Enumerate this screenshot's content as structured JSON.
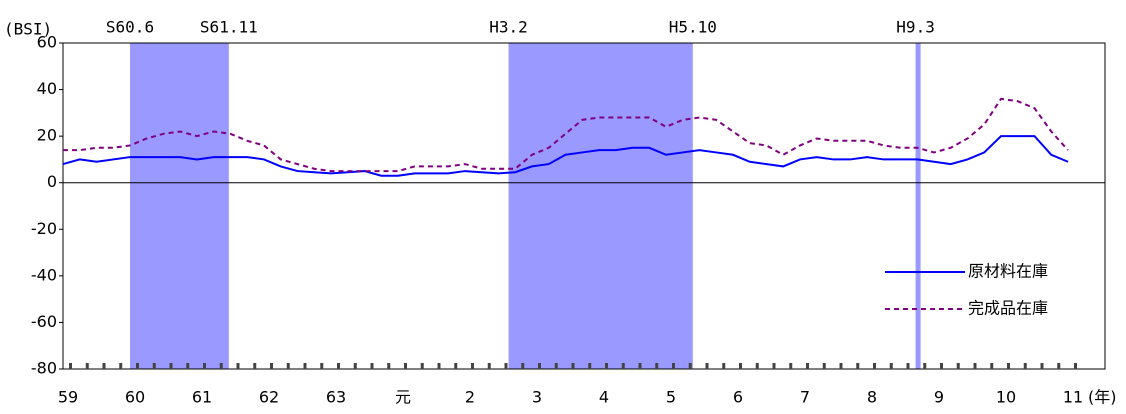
{
  "chart_data": {
    "type": "line",
    "ylabel": "(BSI)",
    "xlabel": "(年)",
    "categories": [
      "59",
      null,
      null,
      null,
      "60",
      null,
      null,
      null,
      "61",
      null,
      null,
      null,
      "62",
      null,
      null,
      null,
      "63",
      null,
      null,
      null,
      "元",
      null,
      null,
      null,
      "2",
      null,
      null,
      null,
      "3",
      null,
      null,
      null,
      "4",
      null,
      null,
      null,
      "5",
      null,
      null,
      null,
      "6",
      null,
      null,
      null,
      "7",
      null,
      null,
      null,
      "8",
      null,
      null,
      null,
      "9",
      null,
      null,
      null,
      "10",
      null,
      null,
      null,
      "11"
    ],
    "series": [
      {
        "name": "原材料在庫",
        "color": "#0000ff",
        "style": "solid",
        "values": [
          8,
          10,
          9,
          10,
          11,
          11,
          11,
          11,
          10,
          11,
          11,
          11,
          10,
          7,
          5,
          4.5,
          4,
          4.5,
          5,
          3,
          3,
          4,
          4,
          4,
          5,
          4.5,
          4,
          4.5,
          7,
          8,
          12,
          13,
          14,
          14,
          15,
          15,
          12,
          13,
          14,
          13,
          12,
          9,
          8,
          7,
          10,
          11,
          10,
          10,
          11,
          10,
          10,
          10,
          9,
          8,
          10,
          13,
          20,
          20,
          20,
          12,
          9
        ]
      },
      {
        "name": "完成品在庫",
        "color": "#800080",
        "style": "dashed",
        "values": [
          14,
          14,
          15,
          15,
          16,
          19,
          21,
          22,
          20,
          22,
          21,
          18,
          16,
          10,
          8,
          6,
          5,
          5,
          5,
          5,
          5,
          7,
          7,
          7,
          8,
          6,
          6,
          6,
          12,
          15,
          21,
          27,
          28,
          28,
          28,
          28,
          24,
          27,
          28,
          27,
          22,
          17,
          16,
          12,
          16,
          19,
          18,
          18,
          18,
          16,
          15,
          15,
          13,
          15,
          19,
          25,
          36,
          35,
          32,
          22,
          14
        ]
      }
    ],
    "bands": [
      {
        "start": 4,
        "end": 9.9,
        "start_label": "S60.6",
        "end_label": "S61.11"
      },
      {
        "start": 26.6,
        "end": 37.6,
        "start_label": "H3.2",
        "end_label": "H5.10"
      },
      {
        "start": 50.9,
        "end": 51.2,
        "start_label": "H9.3"
      }
    ],
    "band_color": "#9999ff",
    "ylim": [
      -80,
      60
    ],
    "yticks": [
      -80,
      -60,
      -40,
      -20,
      0,
      20,
      40,
      60
    ],
    "legend": "lower right"
  }
}
